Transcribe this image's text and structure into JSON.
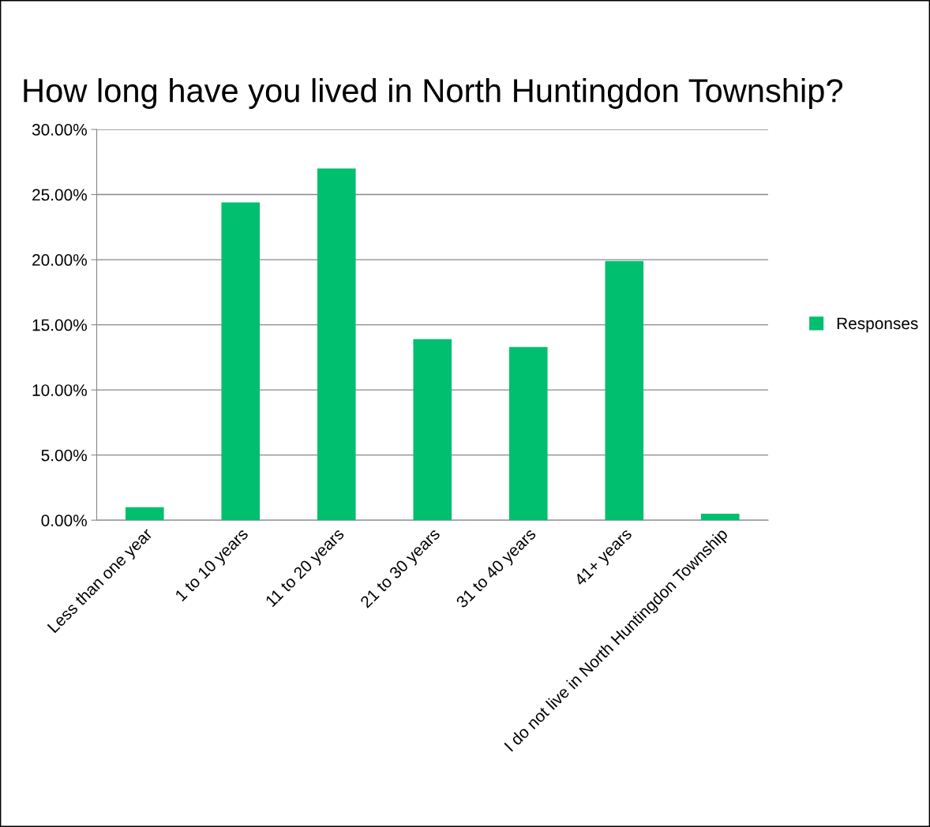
{
  "chart_data": {
    "type": "bar",
    "title": "How long have you lived in North Huntingdon Township?",
    "categories": [
      "Less than one year",
      "1 to 10 years",
      "11 to 20 years",
      "21 to 30 years",
      "31 to 40 years",
      "41+ years",
      "I do not live in North Huntingdon Township"
    ],
    "series": [
      {
        "name": "Responses",
        "color": "#00bf6f",
        "values": [
          1.0,
          24.4,
          27.0,
          13.9,
          13.3,
          19.9,
          0.5
        ]
      }
    ],
    "ylim": [
      0,
      30
    ],
    "yticks": [
      {
        "value": 0,
        "label": "0.00%"
      },
      {
        "value": 5,
        "label": "5.00%"
      },
      {
        "value": 10,
        "label": "10.00%"
      },
      {
        "value": 15,
        "label": "15.00%"
      },
      {
        "value": 20,
        "label": "20.00%"
      },
      {
        "value": 25,
        "label": "25.00%"
      },
      {
        "value": 30,
        "label": "30.00%"
      }
    ],
    "grid": "y",
    "legend": "right"
  }
}
